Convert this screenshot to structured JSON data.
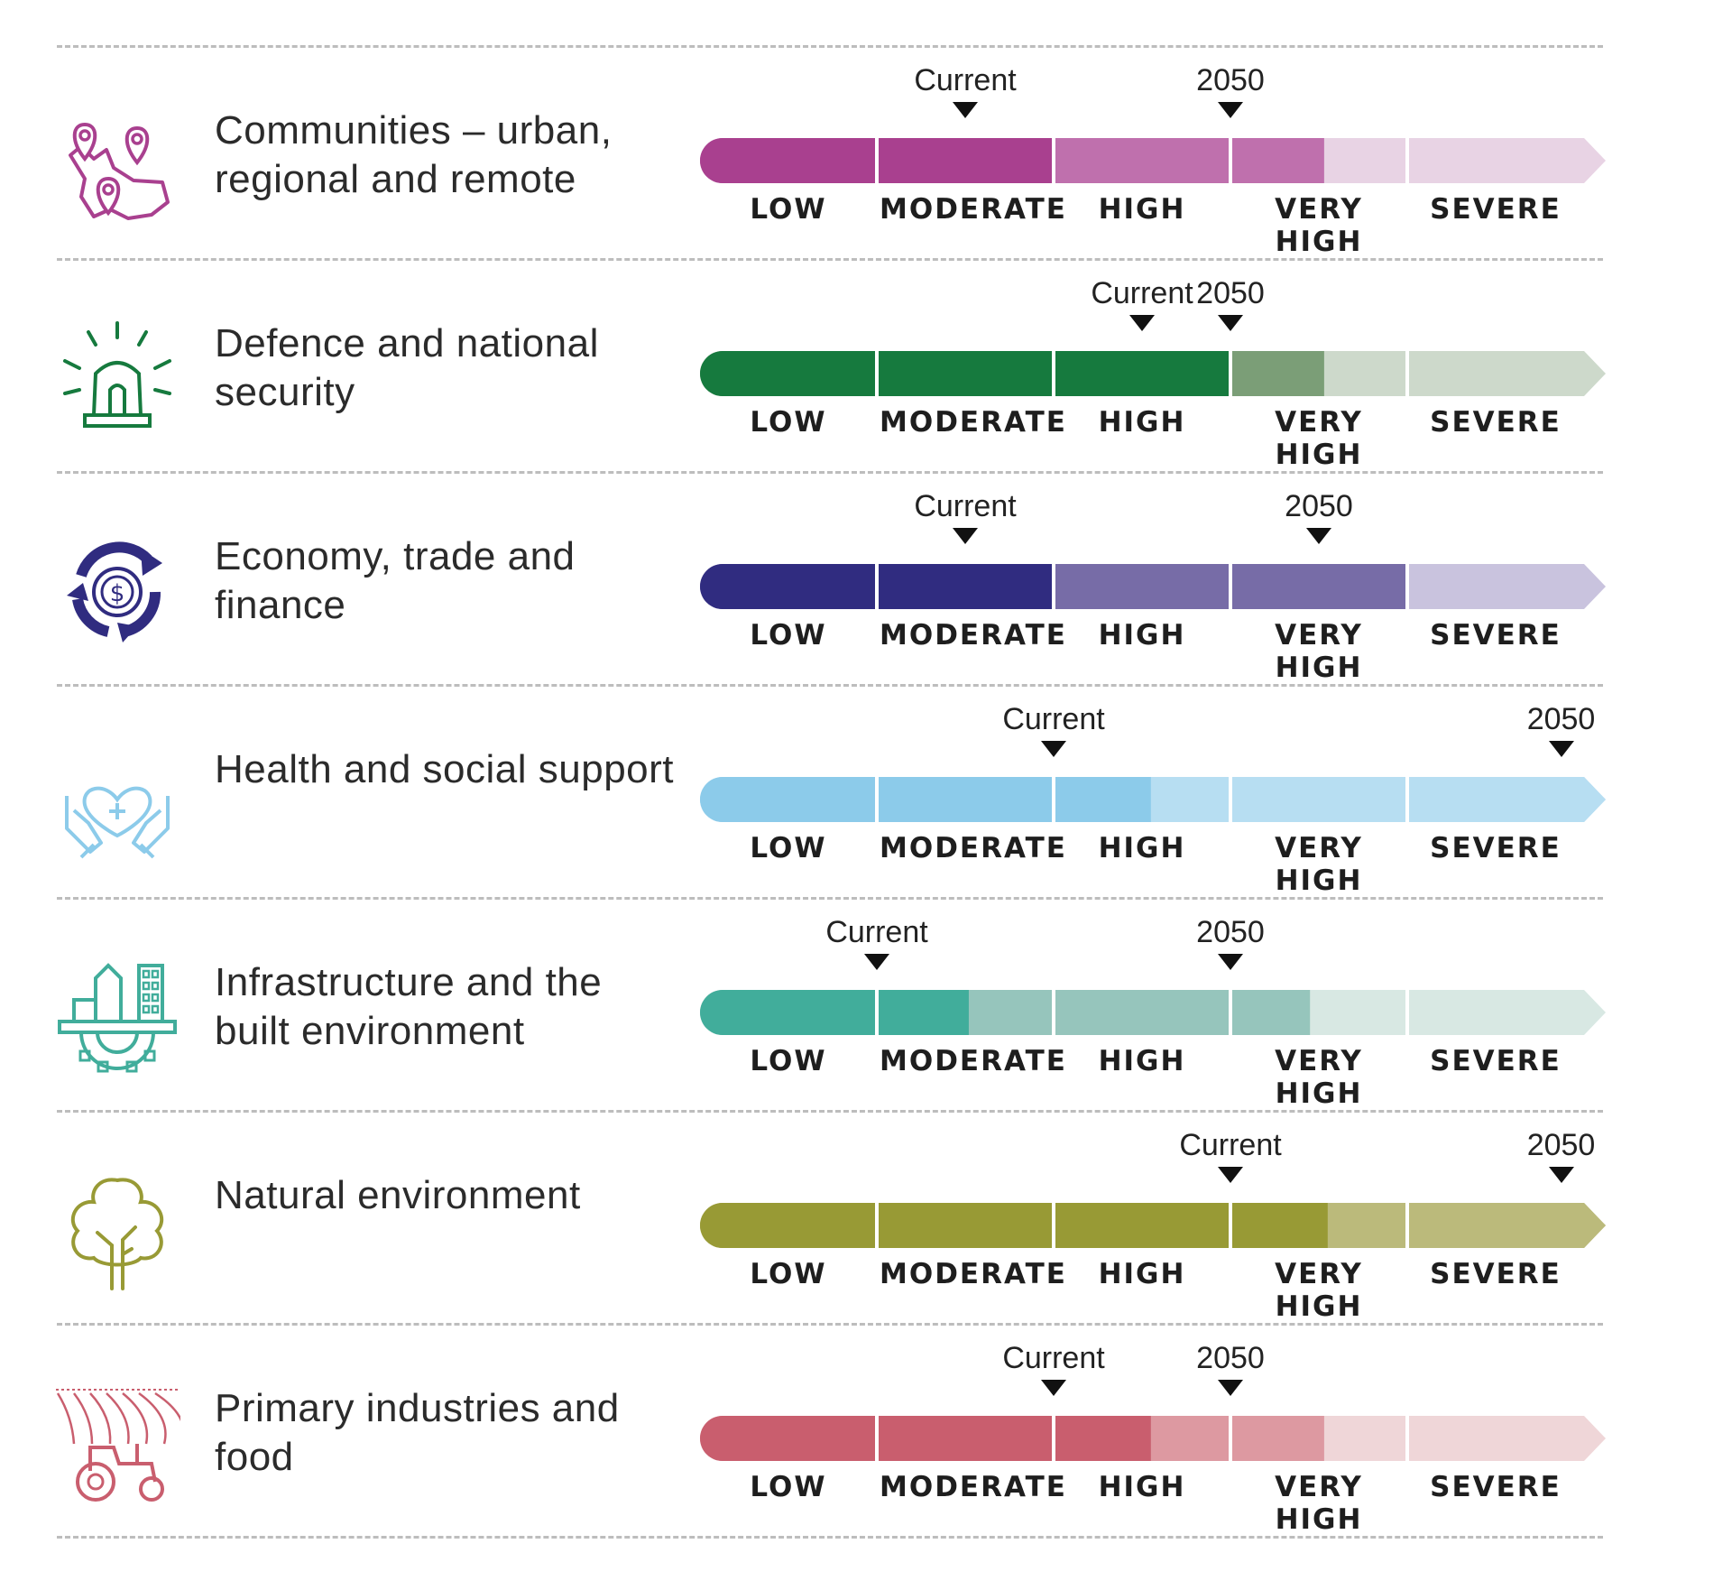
{
  "chart_data": {
    "type": "bar",
    "levels": [
      "LOW",
      "MODERATE",
      "HIGH",
      "VERY HIGH",
      "SEVERE"
    ],
    "marker_labels": {
      "current": "Current",
      "future": "2050"
    },
    "rows": [
      {
        "title": "Communities – urban, regional and remote",
        "icon": "map-pins-icon",
        "color": "#a9408f",
        "light": "#bf70ad",
        "pale": "#e8d3e4",
        "current": 1.5,
        "future": 3.0,
        "fill_end": 1.99,
        "light_end": 3.53
      },
      {
        "title": "Defence and national security",
        "icon": "siren-icon",
        "color": "#167a3e",
        "light": "#7b9e77",
        "pale": "#cdd9cb",
        "current": 2.5,
        "future": 3.0,
        "fill_end": 3.0,
        "light_end": 3.53
      },
      {
        "title": "Economy, trade and finance",
        "icon": "currency-cycle-icon",
        "color": "#302c80",
        "light": "#776ca7",
        "pale": "#c9c3de",
        "current": 1.5,
        "future": 3.5,
        "fill_end": 2.0,
        "light_end": 4.0
      },
      {
        "title": "Health and social support",
        "icon": "heart-hands-icon",
        "color": "#8ccbea",
        "light": "#b7def2",
        "pale": "#b7def2",
        "current": 2.0,
        "future": 4.87,
        "fill_end": 2.55,
        "light_end": 5.0
      },
      {
        "title": "Infrastructure and the built environment",
        "icon": "city-gear-icon",
        "color": "#41ad9b",
        "light": "#96c5bc",
        "pale": "#d8e8e3",
        "current": 1.0,
        "future": 3.0,
        "fill_end": 1.52,
        "light_end": 3.45
      },
      {
        "title": "Natural environment",
        "icon": "tree-icon",
        "color": "#989a35",
        "light": "#bbba7b",
        "pale": "#bbba7b",
        "current": 3.0,
        "future": 4.87,
        "fill_end": 3.55,
        "light_end": 5.0
      },
      {
        "title": "Primary industries and food",
        "icon": "tractor-icon",
        "color": "#c95e6e",
        "light": "#dd99a1",
        "pale": "#efd6d8",
        "current": 2.0,
        "future": 3.0,
        "fill_end": 2.55,
        "light_end": 3.53
      }
    ]
  }
}
